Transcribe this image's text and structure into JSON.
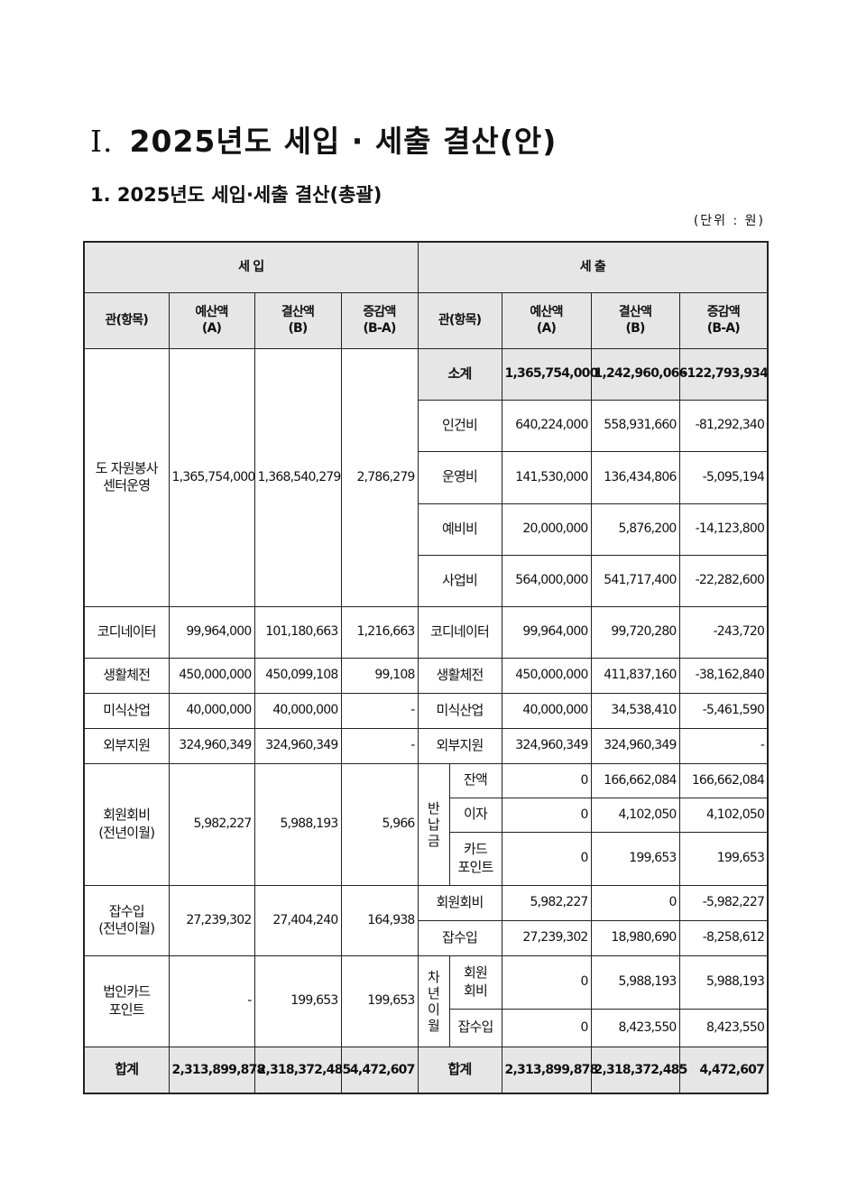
{
  "title": {
    "roman": "Ⅰ.",
    "text": "2025년도 세입 · 세출 결산(안)"
  },
  "subtitle": "1. 2025년도 세입·세출 결산(총괄)",
  "unit": "(단위 : 원)",
  "header": {
    "income": "세 입",
    "expense": "세 출",
    "item": "관(항목)",
    "budget": "예산액\n(A)",
    "settled": "결산액\n(B)",
    "diff": "증감액\n(B-A)"
  },
  "income_rows": [
    {
      "item": "도 자원봉사\n센터운영",
      "budget": "1,365,754,000",
      "settled": "1,368,540,279",
      "diff": "2,786,279"
    },
    {
      "item": "코디네이터",
      "budget": "99,964,000",
      "settled": "101,180,663",
      "diff": "1,216,663"
    },
    {
      "item": "생활체전",
      "budget": "450,000,000",
      "settled": "450,099,108",
      "diff": "99,108"
    },
    {
      "item": "미식산업",
      "budget": "40,000,000",
      "settled": "40,000,000",
      "diff": "-"
    },
    {
      "item": "외부지원",
      "budget": "324,960,349",
      "settled": "324,960,349",
      "diff": "-"
    },
    {
      "item": "회원회비\n(전년이월)",
      "budget": "5,982,227",
      "settled": "5,988,193",
      "diff": "5,966"
    },
    {
      "item": "잡수입\n(전년이월)",
      "budget": "27,239,302",
      "settled": "27,404,240",
      "diff": "164,938"
    },
    {
      "item": "법인카드\n포인트",
      "budget": "-",
      "settled": "199,653",
      "diff": "199,653"
    }
  ],
  "expense_groups": {
    "refund": "반\n납\n금",
    "carryover": "차\n년\n이\n월"
  },
  "expense_rows": [
    {
      "item": "소계",
      "budget": "1,365,754,000",
      "settled": "1,242,960,066",
      "diff": "-122,793,934"
    },
    {
      "item": "인건비",
      "budget": "640,224,000",
      "settled": "558,931,660",
      "diff": "-81,292,340"
    },
    {
      "item": "운영비",
      "budget": "141,530,000",
      "settled": "136,434,806",
      "diff": "-5,095,194"
    },
    {
      "item": "예비비",
      "budget": "20,000,000",
      "settled": "5,876,200",
      "diff": "-14,123,800"
    },
    {
      "item": "사업비",
      "budget": "564,000,000",
      "settled": "541,717,400",
      "diff": "-22,282,600"
    },
    {
      "item": "코디네이터",
      "budget": "99,964,000",
      "settled": "99,720,280",
      "diff": "-243,720"
    },
    {
      "item": "생활체전",
      "budget": "450,000,000",
      "settled": "411,837,160",
      "diff": "-38,162,840"
    },
    {
      "item": "미식산업",
      "budget": "40,000,000",
      "settled": "34,538,410",
      "diff": "-5,461,590"
    },
    {
      "item": "외부지원",
      "budget": "324,960,349",
      "settled": "324,960,349",
      "diff": "-"
    },
    {
      "item": "잔액",
      "budget": "0",
      "settled": "166,662,084",
      "diff": "166,662,084"
    },
    {
      "item": "이자",
      "budget": "0",
      "settled": "4,102,050",
      "diff": "4,102,050"
    },
    {
      "item": "카드\n포인트",
      "budget": "0",
      "settled": "199,653",
      "diff": "199,653"
    },
    {
      "item": "회원회비",
      "budget": "5,982,227",
      "settled": "0",
      "diff": "-5,982,227"
    },
    {
      "item": "잡수입",
      "budget": "27,239,302",
      "settled": "18,980,690",
      "diff": "-8,258,612"
    },
    {
      "item": "회원\n회비",
      "budget": "0",
      "settled": "5,988,193",
      "diff": "5,988,193"
    },
    {
      "item": "잡수입",
      "budget": "0",
      "settled": "8,423,550",
      "diff": "8,423,550"
    }
  ],
  "total": {
    "label": "합계",
    "income_budget": "2,313,899,878",
    "income_settled": "2,318,372,485",
    "income_diff": "4,472,607",
    "expense_budget": "2,313,899,878",
    "expense_settled": "2,318,372,485",
    "expense_diff": "4,472,607"
  }
}
